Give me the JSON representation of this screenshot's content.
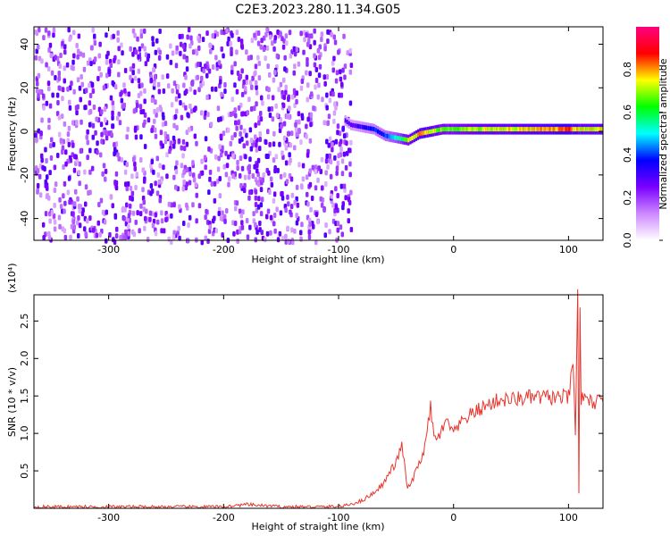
{
  "title": "C2E3.2023.280.11.34.G05",
  "chart_data": [
    {
      "type": "heatmap",
      "xlabel": "Height of straight line (km)",
      "ylabel": "Frequency (Hz)",
      "xlim": [
        -365,
        130
      ],
      "ylim": [
        -50,
        48
      ],
      "xticks": [
        -300,
        -200,
        -100,
        0,
        100
      ],
      "yticks": [
        -40,
        -20,
        0,
        20,
        40
      ],
      "colorbar": {
        "label": "Normalized spectral amplitude",
        "range": [
          0,
          1
        ],
        "ticks": [
          "0.0",
          "0.2",
          "0.4",
          "0.6",
          "0.8"
        ],
        "colors": [
          "#ffffff",
          "#cc88ff",
          "#7a00ff",
          "#0000ff",
          "#00ffff",
          "#00ff00",
          "#ffff00",
          "#ff0000",
          "#ff0080"
        ]
      },
      "noise_region_x": [
        -365,
        -90
      ],
      "signal_ridge": {
        "x": [
          -95,
          -90,
          -80,
          -70,
          -60,
          -50,
          -40,
          -30,
          -20,
          -10,
          0,
          20,
          40,
          60,
          80,
          100,
          110,
          130
        ],
        "freq": [
          5,
          3,
          2,
          1,
          -2,
          -3,
          -4,
          -1,
          0,
          1,
          1,
          1,
          1,
          1,
          1,
          1,
          1,
          1
        ],
        "amplitude": [
          0.3,
          0.3,
          0.35,
          0.4,
          0.45,
          0.55,
          0.75,
          0.85,
          0.8,
          0.7,
          0.7,
          0.75,
          0.8,
          0.8,
          0.85,
          0.9,
          0.8,
          0.8
        ]
      }
    },
    {
      "type": "line",
      "xlabel": "Height of straight line (km)",
      "ylabel": "SNR (10 * v/v)",
      "y_multiplier": "(x10⁴)",
      "xlim": [
        -365,
        130
      ],
      "ylim": [
        0,
        2.85
      ],
      "xticks": [
        -300,
        -200,
        -100,
        0,
        100
      ],
      "yticks": [
        0.5,
        1.0,
        1.5,
        2.0,
        2.5
      ],
      "series": [
        {
          "color": "#e8352d",
          "x": [
            -365,
            -300,
            -250,
            -200,
            -180,
            -150,
            -110,
            -95,
            -80,
            -70,
            -60,
            -55,
            -50,
            -45,
            -42,
            -40,
            -35,
            -30,
            -25,
            -20,
            -17,
            -15,
            -10,
            -5,
            0,
            5,
            10,
            20,
            30,
            40,
            50,
            60,
            70,
            80,
            90,
            100,
            104,
            106,
            108,
            109,
            110,
            111,
            112,
            115,
            120,
            125,
            130
          ],
          "y": [
            0.02,
            0.02,
            0.02,
            0.02,
            0.05,
            0.02,
            0.02,
            0.03,
            0.1,
            0.2,
            0.35,
            0.5,
            0.6,
            0.85,
            0.5,
            0.25,
            0.4,
            0.6,
            0.8,
            1.35,
            0.95,
            0.9,
            1.05,
            1.15,
            1.0,
            1.1,
            1.2,
            1.3,
            1.38,
            1.45,
            1.45,
            1.47,
            1.48,
            1.48,
            1.48,
            1.48,
            1.9,
            1.0,
            2.85,
            0.2,
            2.7,
            1.4,
            1.55,
            1.42,
            1.42,
            1.42,
            1.42
          ]
        }
      ]
    }
  ]
}
